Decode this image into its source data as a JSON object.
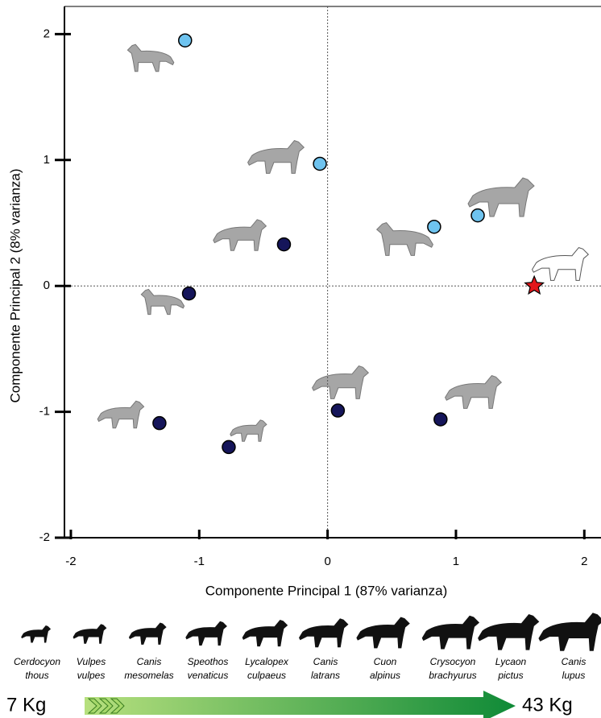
{
  "chart_data": {
    "type": "scatter",
    "x_label": "Componente Principal 1 (87% varianza)",
    "y_label": "Componente Principal 2 (8% varianza)",
    "xlim": [
      -2.05,
      2.13
    ],
    "ylim": [
      -2,
      2.22
    ],
    "xticks": [
      -2,
      -1,
      0,
      1,
      2
    ],
    "yticks": [
      -2,
      -1,
      0,
      1,
      2
    ],
    "zero_lines": true,
    "series": [
      {
        "color": "#6ec3ef",
        "marker": "circle",
        "x": [
          -1.11,
          -0.06,
          0.83,
          1.17
        ],
        "values": [
          1.95,
          0.97,
          0.47,
          0.56
        ]
      },
      {
        "color": "#15155a",
        "marker": "circle",
        "x": [
          -0.34,
          -1.08,
          -1.31,
          -0.77,
          0.08,
          0.88
        ],
        "values": [
          0.33,
          -0.06,
          -1.09,
          -1.28,
          -0.99,
          -1.06
        ]
      },
      {
        "color": "#e4161b",
        "marker": "star",
        "x": [
          1.61
        ],
        "values": [
          0.0
        ]
      }
    ]
  },
  "size_scale": {
    "species": [
      [
        "Cerdocyon",
        "thous"
      ],
      [
        "Vulpes",
        "vulpes"
      ],
      [
        "Canis",
        "mesomelas"
      ],
      [
        "Speothos",
        "venaticus"
      ],
      [
        "Lycalopex",
        "culpaeus"
      ],
      [
        "Canis",
        "latrans"
      ],
      [
        "Cuon",
        "alpinus"
      ],
      [
        "Crysocyon",
        "brachyurus"
      ],
      [
        "Lycaon",
        "pictus"
      ],
      [
        "Canis",
        "lupus"
      ]
    ],
    "min_label": "7 Kg",
    "max_label": "43 Kg"
  }
}
